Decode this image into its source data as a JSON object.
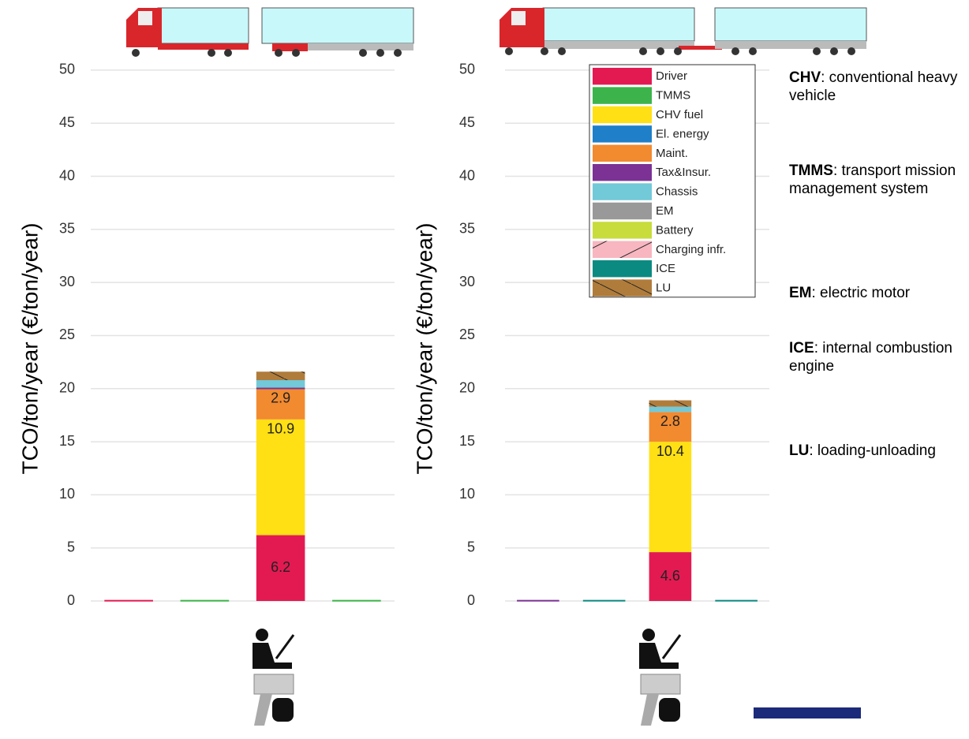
{
  "chart_data": [
    {
      "type": "stacked-bar",
      "ylabel": "TCO/ton/year (€/ton/year)",
      "categories": [
        null,
        null,
        null,
        null
      ],
      "ylim": [
        0,
        52
      ],
      "yticks": [
        0,
        5,
        10,
        15,
        20,
        25,
        30,
        35,
        40,
        45,
        50
      ],
      "grid": true,
      "series": [
        {
          "color": "#e31a52",
          "values": [
            0.1,
            0,
            6.2,
            0
          ]
        },
        {
          "color": "#3cb44b",
          "values": [
            0,
            0.1,
            0,
            0.1
          ]
        },
        {
          "color": "#ffe014",
          "values": [
            0,
            0,
            10.9,
            0
          ]
        },
        {
          "color": "#1f7fc8",
          "values": [
            0,
            0,
            0,
            0
          ]
        },
        {
          "color": "#f28a30",
          "values": [
            0,
            0,
            2.9,
            0
          ]
        },
        {
          "color": "#7b3294",
          "values": [
            0,
            0,
            0.1,
            0
          ]
        },
        {
          "color": "#72c9d8",
          "values": [
            0,
            0,
            0.7,
            0
          ]
        },
        {
          "color": "#999999",
          "values": [
            0,
            0,
            0,
            0
          ]
        },
        {
          "color": "#c8dc3c",
          "values": [
            0,
            0,
            0,
            0
          ]
        },
        {
          "color": "#f7b6c0",
          "hatch": true,
          "values": [
            0,
            0,
            0,
            0
          ]
        },
        {
          "color": "#0b8a82",
          "values": [
            0,
            0,
            0,
            0
          ]
        },
        {
          "color": "#b07c3c",
          "hatch": true,
          "values": [
            0,
            0,
            0.8,
            0
          ]
        }
      ]
    },
    {
      "type": "stacked-bar",
      "ylabel": "TCO/ton/year (€/ton/year)",
      "categories": [
        null,
        null,
        null,
        null
      ],
      "ylim": [
        0,
        52
      ],
      "yticks": [
        0,
        5,
        10,
        15,
        20,
        25,
        30,
        35,
        40,
        45,
        50
      ],
      "grid": true,
      "legend": "top-right",
      "series": [
        {
          "name": "Driver",
          "color": "#e31a52",
          "values": [
            0,
            0,
            4.6,
            0
          ]
        },
        {
          "name": "TMMS",
          "color": "#3cb44b",
          "values": [
            0,
            0,
            0,
            0
          ]
        },
        {
          "name": "CHV fuel",
          "color": "#ffe014",
          "values": [
            0,
            0,
            10.4,
            0
          ]
        },
        {
          "name": "El. energy",
          "color": "#1f7fc8",
          "values": [
            0,
            0,
            0,
            0
          ]
        },
        {
          "name": "Maint.",
          "color": "#f28a30",
          "values": [
            0,
            0,
            2.8,
            0
          ]
        },
        {
          "name": "Tax&Insur.",
          "color": "#7b3294",
          "values": [
            0.1,
            0,
            0,
            0
          ]
        },
        {
          "name": "Chassis",
          "color": "#72c9d8",
          "values": [
            0,
            0,
            0.5,
            0
          ]
        },
        {
          "name": "EM",
          "color": "#999999",
          "values": [
            0,
            0,
            0,
            0
          ]
        },
        {
          "name": "Battery",
          "color": "#c8dc3c",
          "values": [
            0,
            0,
            0,
            0
          ]
        },
        {
          "name": "Charging infr.",
          "color": "#f7b6c0",
          "hatch": true,
          "values": [
            0,
            0,
            0,
            0
          ]
        },
        {
          "name": "ICE",
          "color": "#0b8a82",
          "values": [
            0,
            0.1,
            0,
            0.1
          ]
        },
        {
          "name": "LU",
          "color": "#b07c3c",
          "hatch": true,
          "values": [
            0,
            0,
            0.6,
            0
          ]
        }
      ]
    }
  ],
  "notes": [
    {
      "term": "CHV",
      "text": ": conventional heavy vehicle"
    },
    {
      "term": "TMMS",
      "text": ": transport mission management system"
    },
    {
      "term": "EM",
      "text": ": electric motor"
    },
    {
      "term": "ICE",
      "text": ": internal combustion engine"
    },
    {
      "term": "LU",
      "text": ": loading-unloading"
    }
  ]
}
